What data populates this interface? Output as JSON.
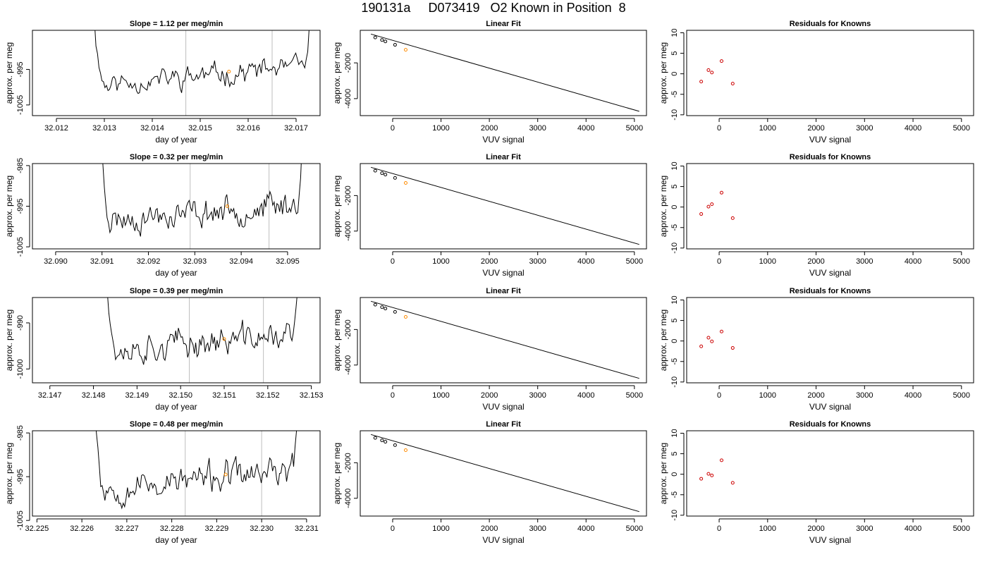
{
  "figure": {
    "title": "190131a     D073419   O2 Known in Position  8"
  },
  "colors": {
    "trace": "#000000",
    "highlight": "#ff8c00",
    "residual_point": "#cc0000",
    "vline": "#bebebe",
    "frame": "#000000"
  },
  "chart_data": [
    {
      "type": "line",
      "row": 1,
      "panel": "timeseries",
      "title": "Slope =  1.12  per meg/min",
      "xlabel": "day of year",
      "ylabel": "approx. per meg",
      "xlim": [
        32.0115,
        32.0175
      ],
      "ylim": [
        -1008,
        -984
      ],
      "xticks": [
        "32.012",
        "32.013",
        "32.014",
        "32.015",
        "32.016",
        "32.017"
      ],
      "yticks": [
        "-1005",
        "-995"
      ],
      "ytick_values": [
        -1005,
        -995
      ],
      "vlines": [
        32.0147,
        32.0165
      ],
      "trace": {
        "start": 32.0127,
        "end": 32.0174,
        "level": -999.5,
        "trend": 5.5,
        "noise": 2.2,
        "seed": 11
      },
      "highlight_point": {
        "x": 32.0156,
        "y": -995.6
      }
    },
    {
      "type": "scatter",
      "row": 1,
      "panel": "fit",
      "title": "Linear Fit",
      "xlabel": "VUV signal",
      "ylabel": "approx. per meg",
      "xlim": [
        -670,
        5250
      ],
      "ylim": [
        -4950,
        -180
      ],
      "xticks": [
        0,
        1000,
        2000,
        3000,
        4000,
        5000
      ],
      "yticks": [
        -2000,
        -4000
      ],
      "points": {
        "x": [
          -360,
          -220,
          -150,
          50
        ],
        "y": [
          -580,
          -720,
          -800,
          -990
        ]
      },
      "highlight_point": {
        "x": 270,
        "y": -1270
      },
      "fit_line": {
        "x": [
          -450,
          5100
        ],
        "y": [
          -390,
          -4710
        ]
      }
    },
    {
      "type": "scatter",
      "row": 1,
      "panel": "residuals",
      "title": "Residuals for Knowns",
      "xlabel": "VUV signal",
      "ylabel": "approx. per meg",
      "xlim": [
        -670,
        5250
      ],
      "ylim": [
        -10.2,
        10.6
      ],
      "xticks": [
        0,
        1000,
        2000,
        3000,
        4000,
        5000
      ],
      "yticks": [
        -10,
        -5,
        0,
        5,
        10
      ],
      "points": {
        "x": [
          -370,
          -220,
          -150,
          50,
          280
        ],
        "y": [
          -1.9,
          0.9,
          0.3,
          3.1,
          -2.4
        ]
      }
    },
    {
      "type": "line",
      "row": 2,
      "panel": "timeseries",
      "title": "Slope =  0.32  per meg/min",
      "xlabel": "day of year",
      "ylabel": "approx. per meg",
      "xlim": [
        32.0895,
        32.0957
      ],
      "ylim": [
        -1005.5,
        -984.5
      ],
      "xticks": [
        "32.090",
        "32.091",
        "32.092",
        "32.093",
        "32.094",
        "32.095"
      ],
      "yticks": [
        "-1005",
        "-995",
        "-985"
      ],
      "ytick_values": [
        -1005,
        -995,
        -985
      ],
      "vlines": [
        32.0929,
        32.0946
      ],
      "trace": {
        "start": 32.0909,
        "end": 32.0954,
        "level": -998.5,
        "trend": 4.0,
        "noise": 2.4,
        "seed": 23
      },
      "highlight_point": {
        "x": 32.0937,
        "y": -995.0
      }
    },
    {
      "type": "scatter",
      "row": 2,
      "panel": "fit",
      "title": "Linear Fit",
      "xlabel": "VUV signal",
      "ylabel": "approx. per meg",
      "xlim": [
        -670,
        5250
      ],
      "ylim": [
        -5000,
        -200
      ],
      "xticks": [
        0,
        1000,
        2000,
        3000,
        4000,
        5000
      ],
      "yticks": [
        -2000,
        -4000
      ],
      "points": {
        "x": [
          -360,
          -220,
          -150,
          50
        ],
        "y": [
          -600,
          -740,
          -820,
          -1010
        ]
      },
      "highlight_point": {
        "x": 270,
        "y": -1290
      },
      "fit_line": {
        "x": [
          -450,
          5100
        ],
        "y": [
          -410,
          -4750
        ]
      }
    },
    {
      "type": "scatter",
      "row": 2,
      "panel": "residuals",
      "title": "Residuals for Knowns",
      "xlabel": "VUV signal",
      "ylabel": "approx. per meg",
      "xlim": [
        -670,
        5250
      ],
      "ylim": [
        -10.2,
        10.6
      ],
      "xticks": [
        0,
        1000,
        2000,
        3000,
        4000,
        5000
      ],
      "yticks": [
        -10,
        -5,
        0,
        5,
        10
      ],
      "points": {
        "x": [
          -370,
          -220,
          -150,
          50,
          280
        ],
        "y": [
          -1.7,
          0.1,
          0.7,
          3.5,
          -2.7
        ]
      }
    },
    {
      "type": "line",
      "row": 3,
      "panel": "timeseries",
      "title": "Slope =  0.39  per meg/min",
      "xlabel": "day of year",
      "ylabel": "approx. per meg",
      "xlim": [
        32.1466,
        32.1532
      ],
      "ylim": [
        -1003,
        -984.5
      ],
      "xticks": [
        "32.147",
        "32.148",
        "32.149",
        "32.150",
        "32.151",
        "32.152",
        "32.153"
      ],
      "yticks": [
        "-1000",
        "-990"
      ],
      "ytick_values": [
        -1000,
        -990
      ],
      "vlines": [
        32.1502,
        32.1519
      ],
      "trace": {
        "start": 32.1482,
        "end": 32.1528,
        "level": -996.0,
        "trend": 3.5,
        "noise": 2.2,
        "seed": 37
      },
      "highlight_point": {
        "x": 32.151,
        "y": -993.5
      }
    },
    {
      "type": "scatter",
      "row": 3,
      "panel": "fit",
      "title": "Linear Fit",
      "xlabel": "VUV signal",
      "ylabel": "approx. per meg",
      "xlim": [
        -670,
        5250
      ],
      "ylim": [
        -5000,
        -200
      ],
      "xticks": [
        0,
        1000,
        2000,
        3000,
        4000,
        5000
      ],
      "yticks": [
        -2000,
        -4000
      ],
      "points": {
        "x": [
          -360,
          -220,
          -150,
          50
        ],
        "y": [
          -600,
          -740,
          -820,
          -1010
        ]
      },
      "highlight_point": {
        "x": 270,
        "y": -1290
      },
      "fit_line": {
        "x": [
          -450,
          5100
        ],
        "y": [
          -410,
          -4750
        ]
      }
    },
    {
      "type": "scatter",
      "row": 3,
      "panel": "residuals",
      "title": "Residuals for Knowns",
      "xlabel": "VUV signal",
      "ylabel": "approx. per meg",
      "xlim": [
        -670,
        5250
      ],
      "ylim": [
        -10.2,
        10.6
      ],
      "xticks": [
        0,
        1000,
        2000,
        3000,
        4000,
        5000
      ],
      "yticks": [
        -10,
        -5,
        0,
        5,
        10
      ],
      "points": {
        "x": [
          -370,
          -220,
          -150,
          50,
          280
        ],
        "y": [
          -1.3,
          0.8,
          -0.1,
          2.3,
          -1.7
        ]
      }
    },
    {
      "type": "line",
      "row": 4,
      "panel": "timeseries",
      "title": "Slope =  0.48  per meg/min",
      "xlabel": "day of year",
      "ylabel": "approx. per meg",
      "xlim": [
        32.2249,
        32.2313
      ],
      "ylim": [
        -1004,
        -984.5
      ],
      "xticks": [
        "32.225",
        "32.226",
        "32.227",
        "32.228",
        "32.229",
        "32.230",
        "32.231"
      ],
      "yticks": [
        "-1005",
        "-995",
        "-985"
      ],
      "ytick_values": [
        -1005,
        -995,
        -985
      ],
      "vlines": [
        32.2283,
        32.23
      ],
      "trace": {
        "start": 32.2262,
        "end": 32.2309,
        "level": -998.0,
        "trend": 4.5,
        "noise": 2.4,
        "seed": 53
      },
      "highlight_point": {
        "x": 32.2292,
        "y": -994.5
      }
    },
    {
      "type": "scatter",
      "row": 4,
      "panel": "fit",
      "title": "Linear Fit",
      "xlabel": "VUV signal",
      "ylabel": "approx. per meg",
      "xlim": [
        -670,
        5250
      ],
      "ylim": [
        -5000,
        -200
      ],
      "xticks": [
        0,
        1000,
        2000,
        3000,
        4000,
        5000
      ],
      "yticks": [
        -2000,
        -4000
      ],
      "points": {
        "x": [
          -360,
          -220,
          -150,
          50
        ],
        "y": [
          -600,
          -740,
          -820,
          -1010
        ]
      },
      "highlight_point": {
        "x": 270,
        "y": -1290
      },
      "fit_line": {
        "x": [
          -450,
          5100
        ],
        "y": [
          -410,
          -4750
        ]
      }
    },
    {
      "type": "scatter",
      "row": 4,
      "panel": "residuals",
      "title": "Residuals for Knowns",
      "xlabel": "VUV signal",
      "ylabel": "approx. per meg",
      "xlim": [
        -670,
        5250
      ],
      "ylim": [
        -10.2,
        10.6
      ],
      "xticks": [
        0,
        1000,
        2000,
        3000,
        4000,
        5000
      ],
      "yticks": [
        -10,
        -5,
        0,
        5,
        10
      ],
      "points": {
        "x": [
          -370,
          -220,
          -150,
          50,
          280
        ],
        "y": [
          -1.1,
          0.1,
          -0.3,
          3.4,
          -2.1
        ]
      }
    }
  ]
}
